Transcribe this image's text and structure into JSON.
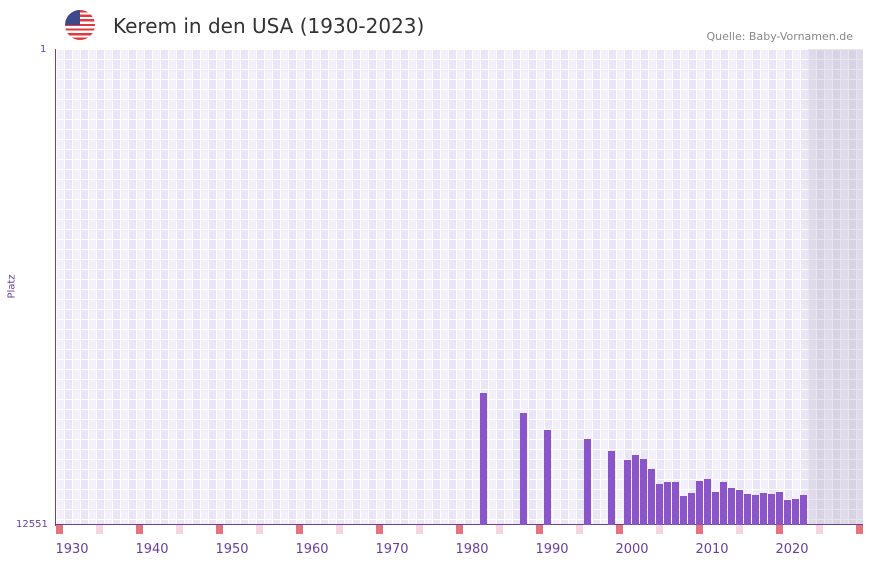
{
  "header": {
    "title": "Kerem in den USA (1930-2023)",
    "source": "Quelle: Baby-Vornamen.de",
    "flag_icon": "us-flag-icon"
  },
  "chart_data": {
    "type": "bar",
    "title": "Kerem in den USA (1930-2023)",
    "xlabel": "",
    "ylabel": "Platz",
    "ylim": [
      12551,
      1
    ],
    "y_ticks": [
      "1",
      "12551"
    ],
    "x_range": [
      1929,
      2029
    ],
    "x_ticks": [
      "1930",
      "1940",
      "1950",
      "1960",
      "1970",
      "1980",
      "1990",
      "2000",
      "2010",
      "2020"
    ],
    "bar_color": "#8a55c7",
    "x": [
      1982,
      1987,
      1990,
      1995,
      1998,
      2000,
      2001,
      2002,
      2003,
      2004,
      2005,
      2006,
      2007,
      2008,
      2009,
      2010,
      2011,
      2012,
      2013,
      2014,
      2015,
      2016,
      2017,
      2018,
      2019,
      2020,
      2021,
      2022
    ],
    "values": [
      9063,
      9590,
      10046,
      10284,
      10600,
      10837,
      10705,
      10811,
      11075,
      11470,
      11417,
      11417,
      11786,
      11707,
      11391,
      11338,
      11681,
      11417,
      11575,
      11628,
      11734,
      11760,
      11707,
      11734,
      11681,
      11892,
      11865,
      11760
    ]
  }
}
